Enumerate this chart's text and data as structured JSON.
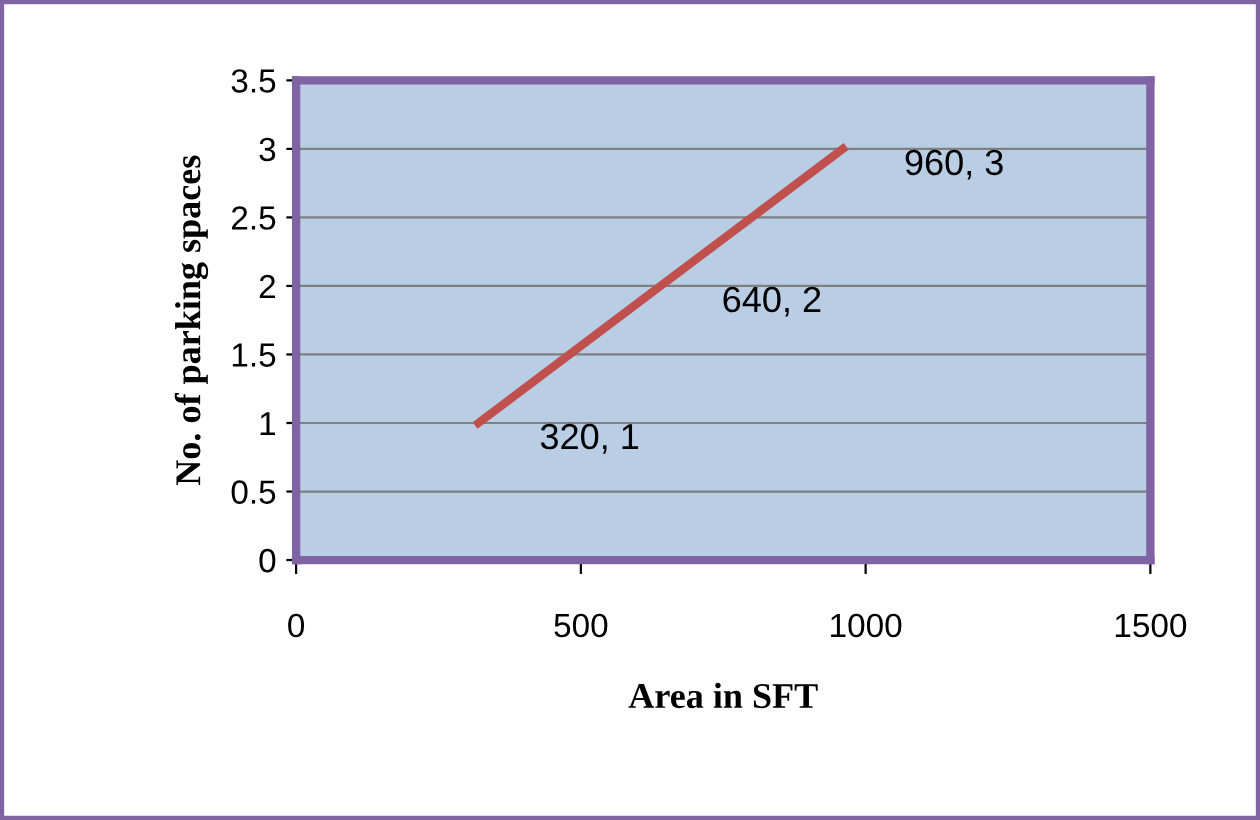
{
  "chart_data": {
    "type": "line",
    "xlabel": "Area in SFT",
    "ylabel": "No. of parking spaces",
    "series": [
      {
        "color": "#c0504d",
        "x": [
          320,
          640,
          960
        ],
        "values": [
          1,
          2,
          3
        ]
      }
    ],
    "annotations": [
      {
        "text": "320, 1",
        "x": 320,
        "y": 1
      },
      {
        "text": "640, 2",
        "x": 640,
        "y": 2
      },
      {
        "text": "960, 3",
        "x": 960,
        "y": 3
      }
    ],
    "xlim": [
      0,
      1500
    ],
    "xticks": [
      0,
      500,
      1000,
      1500
    ],
    "ylim": [
      0,
      3.5
    ],
    "yticks": [
      0,
      0.5,
      1,
      1.5,
      2,
      2.5,
      3,
      3.5
    ],
    "grid": "y",
    "marker": "none",
    "line_style": "solid",
    "legend": false
  }
}
